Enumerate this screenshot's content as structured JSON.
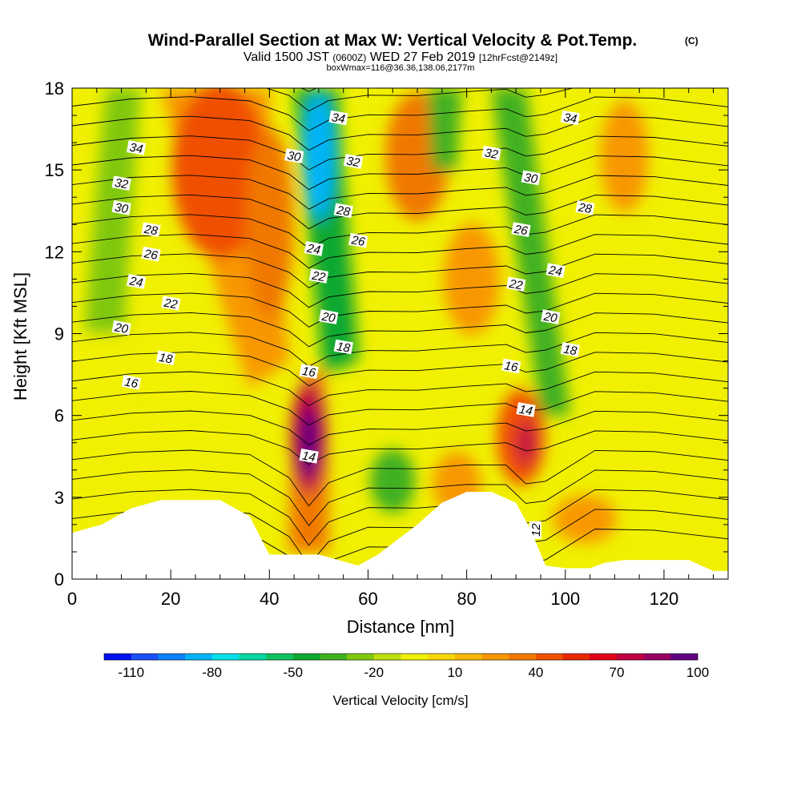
{
  "chart_data": {
    "type": "heatmap",
    "title": "Wind-Parallel Section at Max W: Vertical Velocity & Pot.Temp.",
    "title_mark": "(C)",
    "subtitle_pre": "Valid 1500 JST",
    "subtitle_utc": "(0600Z)",
    "subtitle_post": "WED 27 Feb 2019",
    "subtitle_fcst": "[12hrFcst@2149z]",
    "subtitle2": "boxWmax=116@36.36,138.06,2177m",
    "xlabel": "Distance [nm]",
    "ylabel": "Height [Kft MSL]",
    "xlim": [
      0,
      133
    ],
    "ylim": [
      0,
      18
    ],
    "x_ticks": [
      "0",
      "20",
      "40",
      "60",
      "80",
      "100",
      "120"
    ],
    "x_tick_values": [
      0,
      20,
      40,
      60,
      80,
      100,
      120
    ],
    "y_ticks": [
      "0",
      "3",
      "6",
      "9",
      "12",
      "15",
      "18"
    ],
    "y_tick_values": [
      0,
      3,
      6,
      9,
      12,
      15,
      18
    ],
    "colorbar": {
      "label": "Vertical Velocity [cm/s]",
      "min": -120,
      "max": 120,
      "step": 10,
      "tick_labels": [
        "-110",
        "-80",
        "-50",
        "-20",
        "10",
        "40",
        "70",
        "100"
      ],
      "tick_values": [
        -110,
        -80,
        -50,
        -20,
        10,
        40,
        70,
        100
      ],
      "colors": [
        "#0010f0",
        "#1a50f8",
        "#0a82f8",
        "#00b4f8",
        "#00e0e8",
        "#00d8a0",
        "#10c060",
        "#10a830",
        "#40b020",
        "#80c810",
        "#c0e010",
        "#f0f000",
        "#f8d800",
        "#f8b800",
        "#f89800",
        "#f07800",
        "#f05000",
        "#e82800",
        "#e00018",
        "#c00040",
        "#980060",
        "#600080"
      ]
    },
    "w_updraft_cores": [
      {
        "x": 48,
        "z": 5.0,
        "w": 116
      },
      {
        "x": 92,
        "z": 5.2,
        "w": 70
      },
      {
        "x": 33,
        "z": 14,
        "w": 40
      },
      {
        "x": 24,
        "z": 15,
        "w": 35
      },
      {
        "x": 70,
        "z": 15.5,
        "w": 30
      },
      {
        "x": 81,
        "z": 11,
        "w": 25
      },
      {
        "x": 110,
        "z": 15.5,
        "w": 25
      }
    ],
    "w_downdraft_bands": [
      {
        "from": [
          6,
          8.5
        ],
        "to": [
          8,
          18
        ],
        "w": -30
      },
      {
        "from": [
          52,
          8
        ],
        "to": [
          46,
          18
        ],
        "w": -90
      },
      {
        "from": [
          97,
          6
        ],
        "to": [
          83,
          18
        ],
        "w": -50
      },
      {
        "from": [
          76,
          16
        ],
        "to": [
          74,
          18
        ],
        "w": -40
      },
      {
        "x": 65,
        "z": 3.6,
        "w": -35
      }
    ],
    "theta_contour_labels": [
      "12",
      "14",
      "14",
      "16",
      "16",
      "16",
      "18",
      "18",
      "18",
      "20",
      "20",
      "20",
      "22",
      "22",
      "22",
      "24",
      "24",
      "24",
      "26",
      "26",
      "26",
      "28",
      "28",
      "28",
      "30",
      "30",
      "30",
      "32",
      "32",
      "32",
      "34",
      "34",
      "34"
    ],
    "theta_levels": [
      12,
      13,
      14,
      15,
      16,
      17,
      18,
      19,
      20,
      21,
      22,
      23,
      24,
      25,
      26,
      27,
      28,
      29,
      30,
      31,
      32,
      33,
      34,
      35,
      36
    ],
    "terrain_x": [
      0,
      6,
      9,
      12,
      18,
      30,
      36,
      40,
      45,
      50,
      58,
      62,
      70,
      75,
      80,
      85,
      90,
      93,
      96,
      100,
      105,
      108,
      112,
      118,
      125,
      130,
      133
    ],
    "terrain_z": [
      1.7,
      2.0,
      2.3,
      2.6,
      2.9,
      2.9,
      2.3,
      0.9,
      0.9,
      0.9,
      0.5,
      0.9,
      2.0,
      2.8,
      3.2,
      3.2,
      2.8,
      1.8,
      0.5,
      0.4,
      0.4,
      0.6,
      0.7,
      0.7,
      0.7,
      0.3,
      0.3
    ]
  }
}
